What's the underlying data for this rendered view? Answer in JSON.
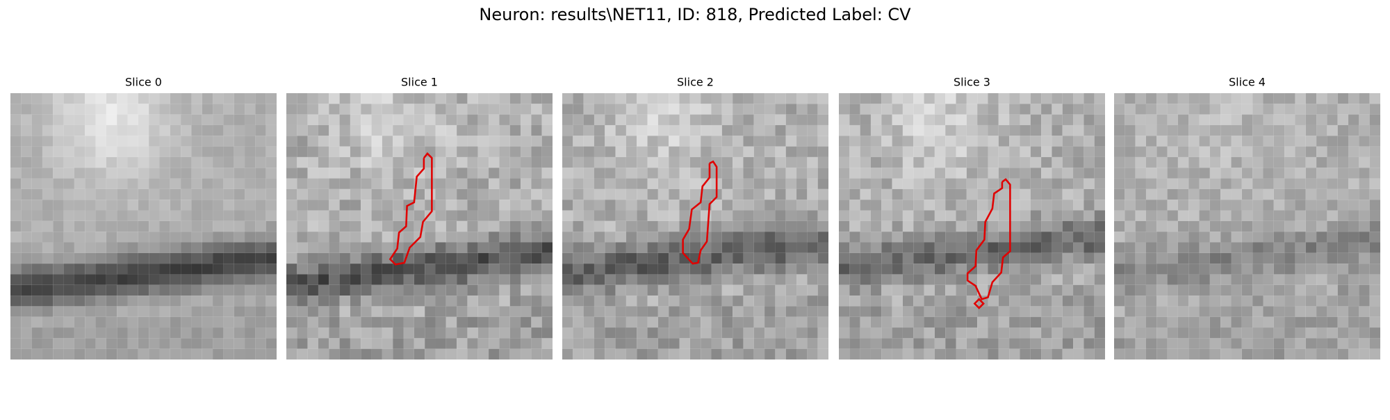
{
  "title": "Neuron: results\\NET11, ID: 818, Predicted Label: CV",
  "panels": [
    {
      "title": "Slice 0"
    },
    {
      "title": "Slice 1"
    },
    {
      "title": "Slice 2"
    },
    {
      "title": "Slice 3"
    },
    {
      "title": "Slice 4"
    }
  ]
}
